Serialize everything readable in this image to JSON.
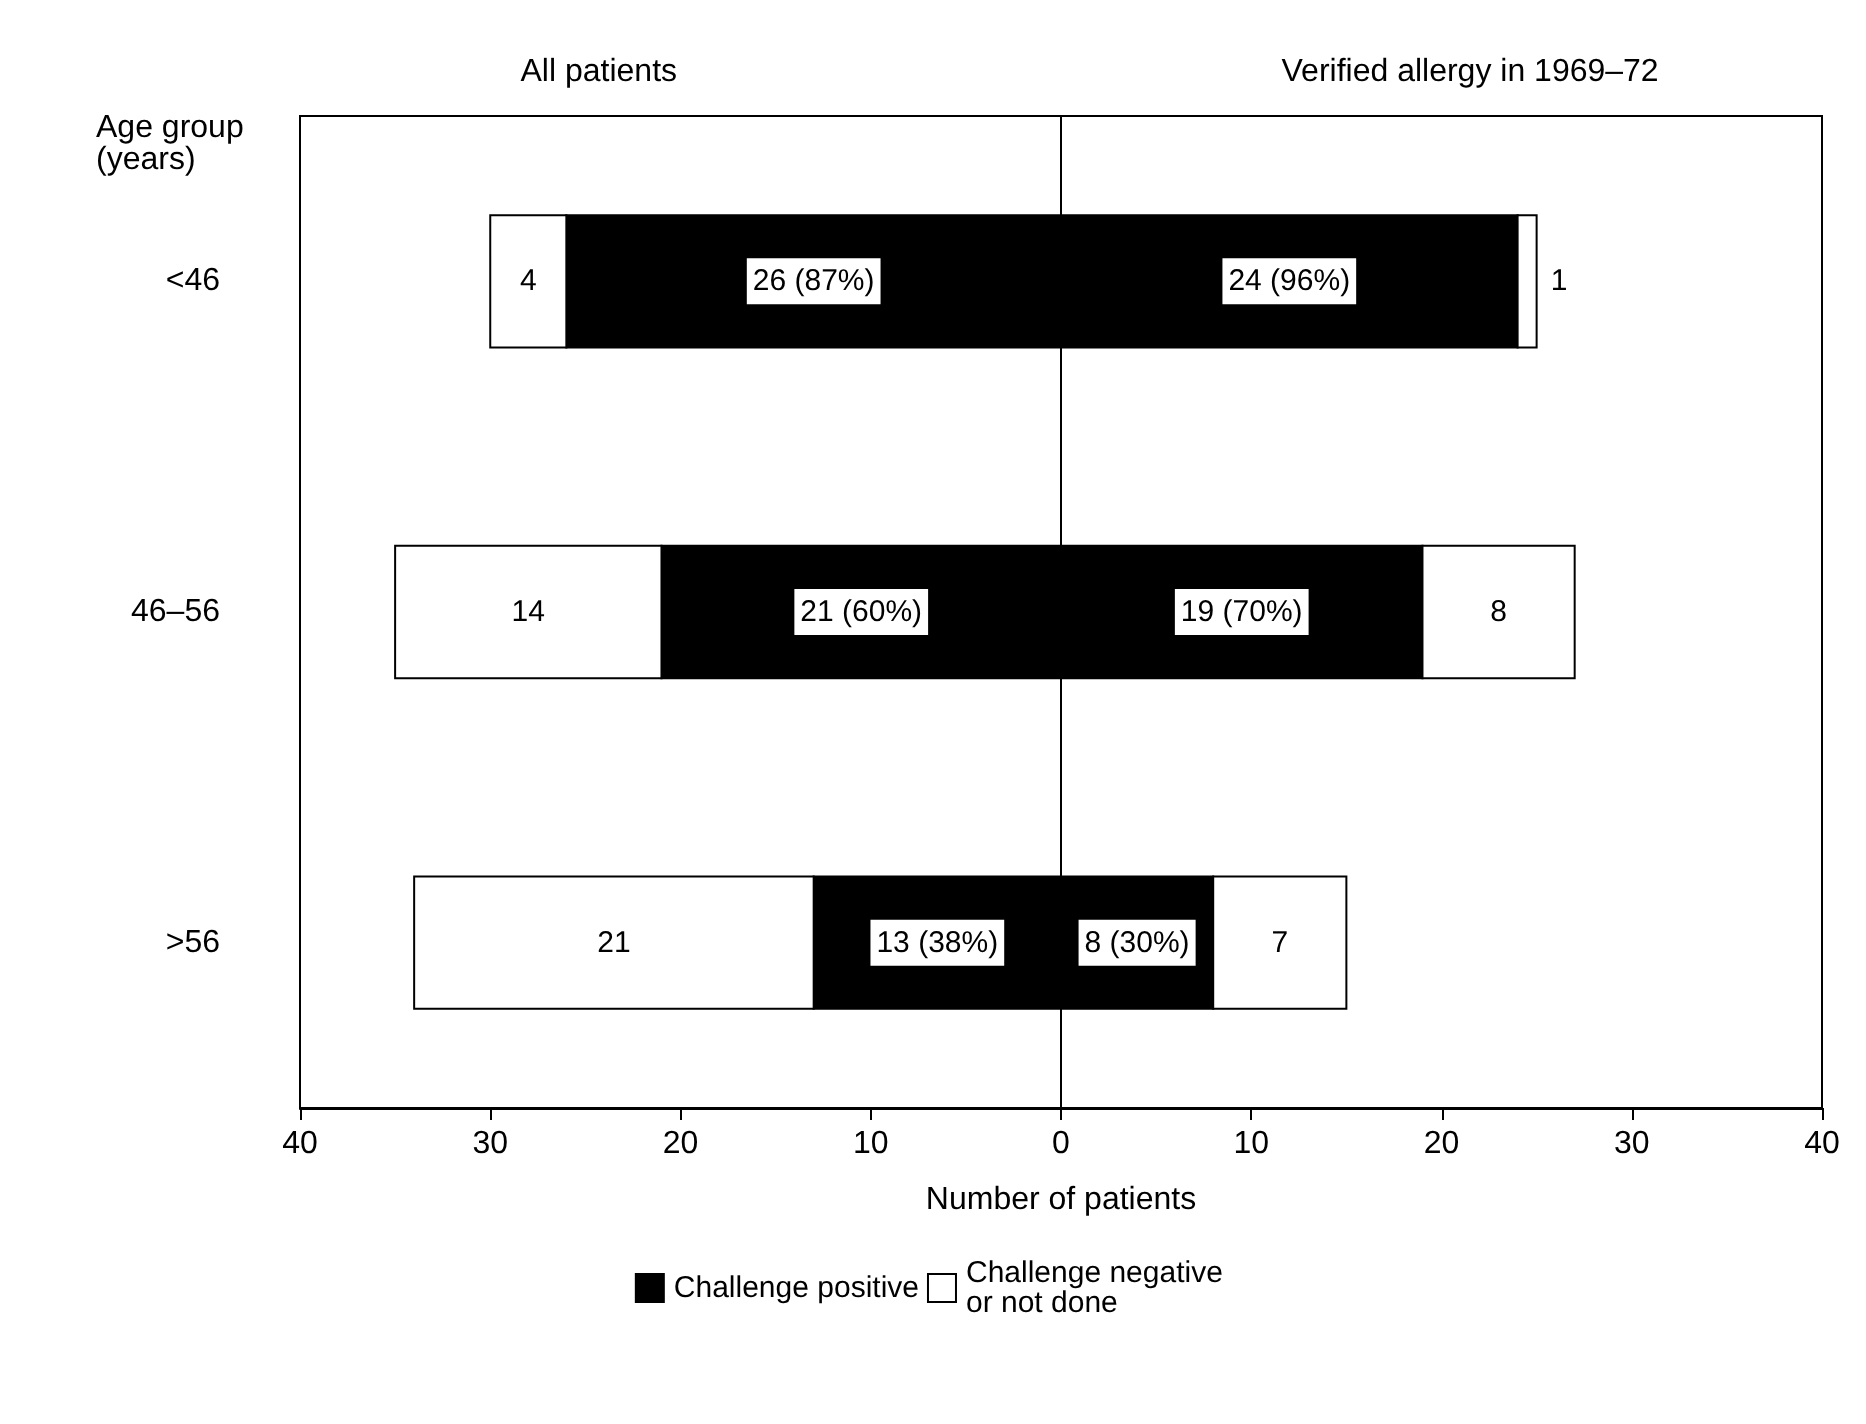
{
  "chart_data": {
    "type": "bar",
    "orientation": "horizontal",
    "ylabel": "Age group\n(years)",
    "xlabel": "Number of patients",
    "annotations": [
      "All patients",
      "Verified allergy in 1969–72"
    ],
    "categories": [
      "<46",
      "46–56",
      ">56"
    ],
    "series": [
      {
        "name": "Challenge positive",
        "color": "#000000",
        "values": [
          26,
          21,
          13
        ],
        "base": [
          -26,
          -21,
          -13
        ],
        "value_labels": [
          "26 (87%)",
          "21 (60%)",
          "13 (38%)"
        ]
      },
      {
        "name": "Challenge negative or not done",
        "color": "#ffffff",
        "values": [
          4,
          14,
          21
        ],
        "base": [
          -30,
          -35,
          -34
        ],
        "value_labels": [
          "4",
          "14",
          "21"
        ]
      },
      {
        "color": "#000000",
        "values": [
          24,
          19,
          8
        ],
        "base": [
          0,
          0,
          0
        ],
        "value_labels": [
          "24 (96%)",
          "19 (70%)",
          "8 (30%)"
        ]
      },
      {
        "color": "#ffffff",
        "values": [
          1,
          8,
          7
        ],
        "base": [
          24,
          19,
          8
        ],
        "value_labels": [
          "1",
          "8",
          "7"
        ]
      }
    ],
    "xlim": [
      -40,
      40
    ],
    "xticks": [
      {
        "value": -40,
        "label": "40"
      },
      {
        "value": -30,
        "label": "30"
      },
      {
        "value": -20,
        "label": "20"
      },
      {
        "value": -10,
        "label": "10"
      },
      0,
      10,
      20,
      30,
      40
    ],
    "ref_lines": [
      {
        "axis": "x",
        "value": 0
      }
    ],
    "grid": false,
    "legend": "bottom"
  }
}
